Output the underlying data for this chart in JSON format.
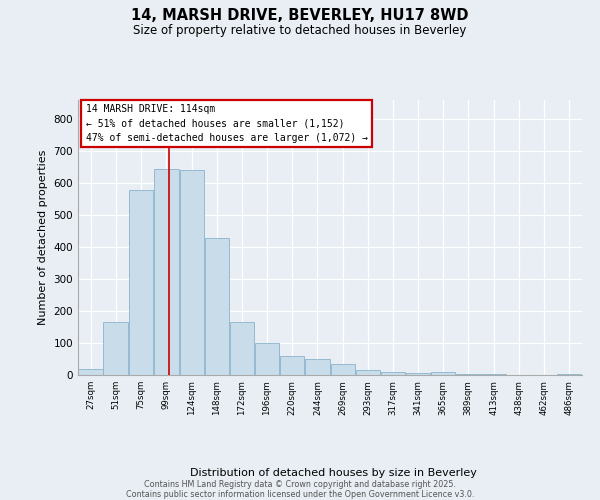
{
  "title": "14, MARSH DRIVE, BEVERLEY, HU17 8WD",
  "subtitle": "Size of property relative to detached houses in Beverley",
  "xlabel": "Distribution of detached houses by size in Beverley",
  "ylabel": "Number of detached properties",
  "bar_color": "#c8dcea",
  "bar_edge_color": "#8ab4cc",
  "background_color": "#e8eef4",
  "fig_background_color": "#e8eef4",
  "grid_color": "#ffffff",
  "vline_color": "#cc0000",
  "annotation_title": "14 MARSH DRIVE: 114sqm",
  "annotation_line1": "← 51% of detached houses are smaller (1,152)",
  "annotation_line2": "47% of semi-detached houses are larger (1,072) →",
  "bins": [
    27,
    51,
    75,
    99,
    124,
    148,
    172,
    196,
    220,
    244,
    269,
    293,
    317,
    341,
    365,
    389,
    413,
    438,
    462,
    486,
    510
  ],
  "counts": [
    20,
    165,
    580,
    645,
    640,
    430,
    165,
    100,
    60,
    50,
    35,
    15,
    10,
    5,
    8,
    2,
    2,
    0,
    0,
    3
  ],
  "vline_x": 114,
  "ylim": [
    0,
    860
  ],
  "yticks": [
    0,
    100,
    200,
    300,
    400,
    500,
    600,
    700,
    800
  ],
  "footer_line1": "Contains HM Land Registry data © Crown copyright and database right 2025.",
  "footer_line2": "Contains public sector information licensed under the Open Government Licence v3.0."
}
